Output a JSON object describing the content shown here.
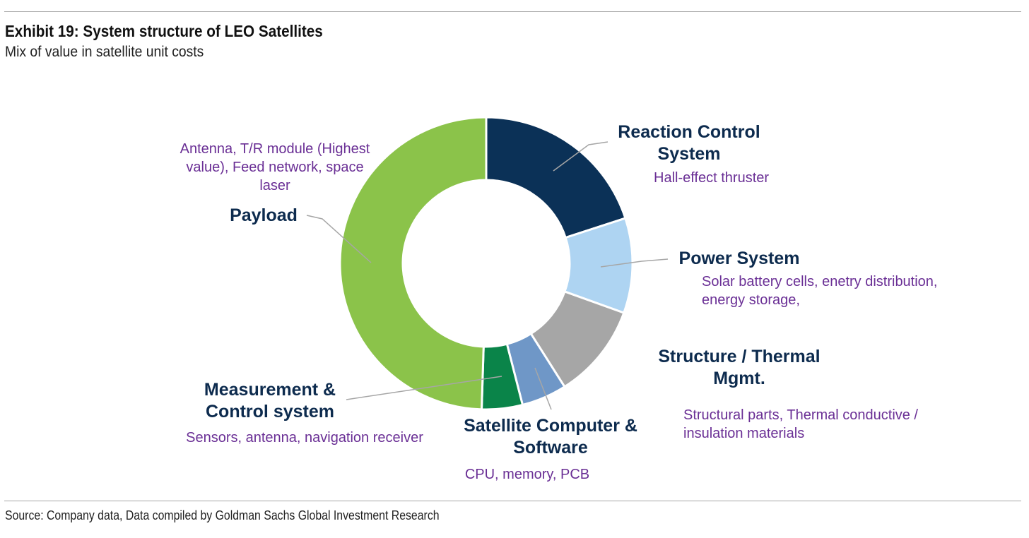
{
  "header": {
    "title": "Exhibit 19: System structure of LEO Satellites",
    "subtitle": "Mix of value in satellite unit costs"
  },
  "footer": {
    "source": "Source: Company data, Data compiled by Goldman Sachs Global Investment Research"
  },
  "chart_data": {
    "type": "pie",
    "variant": "donut",
    "title": "",
    "unit": "share of satellite unit cost (%)",
    "legend": "none (direct labels with leader lines)",
    "slices": [
      {
        "name": "Reaction Control System",
        "label_lines": [
          "Reaction Control",
          "System"
        ],
        "description_lines": [
          "Hall-effect thruster"
        ],
        "value": 20,
        "color": "#0b3157"
      },
      {
        "name": "Power System",
        "label_lines": [
          "Power System"
        ],
        "description_lines": [
          "Solar battery cells, enetry distribution,",
          "energy storage,"
        ],
        "value": 10.5,
        "color": "#aed4f2"
      },
      {
        "name": "Structure / Thermal Mgmt.",
        "label_lines": [
          "Structure / Thermal",
          "Mgmt."
        ],
        "description_lines": [
          "Structural parts, Thermal conductive /",
          "insulation materials"
        ],
        "value": 10.5,
        "color": "#a6a6a6"
      },
      {
        "name": "Satellite Computer & Software",
        "label_lines": [
          "Satellite Computer &",
          "Software"
        ],
        "description_lines": [
          "CPU, memory, PCB"
        ],
        "value": 5,
        "color": "#6f97c7"
      },
      {
        "name": "Measurement & Control system",
        "label_lines": [
          "Measurement &",
          "Control system"
        ],
        "description_lines": [
          "Sensors, antenna, navigation receiver"
        ],
        "value": 4.5,
        "color": "#0a8449"
      },
      {
        "name": "Payload",
        "label_lines": [
          "Payload"
        ],
        "description_lines": [
          "Antenna, T/R module (Highest",
          "value), Feed network, space",
          "laser"
        ],
        "value": 49.5,
        "color": "#8bc34a"
      }
    ]
  }
}
